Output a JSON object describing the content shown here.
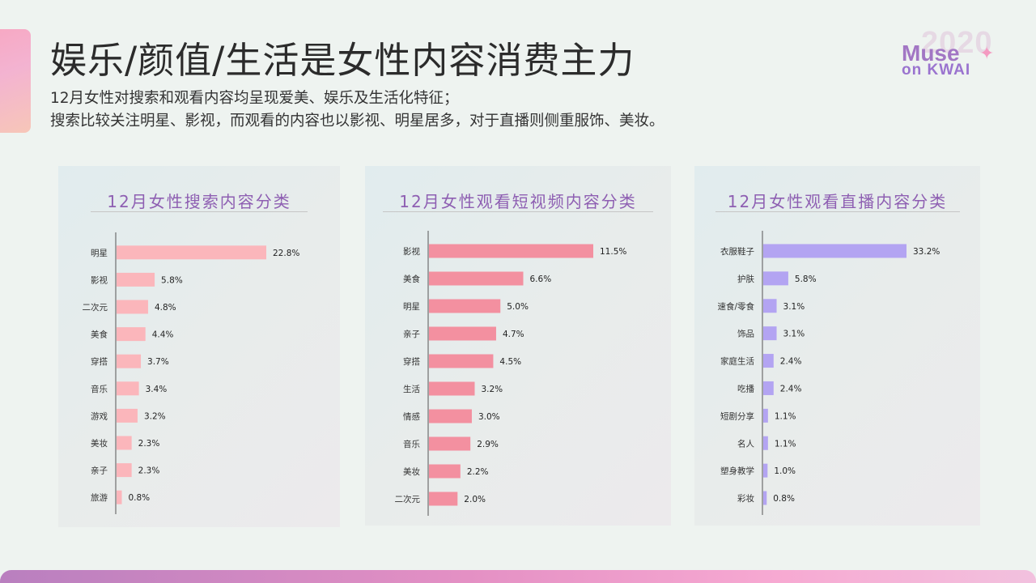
{
  "title": "娱乐/颜值/生活是女性内容消费主力",
  "subtitle_line1": "12月女性对搜索和观看内容均呈现爱美、娱乐及生活化特征；",
  "subtitle_line2": "搜索比较关注明星、影视，而观看的内容也以影视、明星居多，对于直播则侧重服饰、美妆。",
  "logo": {
    "year": "2020",
    "line1": "Muse",
    "line2": "on KWAI"
  },
  "colors": {
    "search": "#fbb6bb",
    "video": "#f390a0",
    "live": "#b3a4f2",
    "title_text": "#8e5fb2"
  },
  "chart_data": [
    {
      "type": "bar",
      "orientation": "horizontal",
      "title": "12月女性搜索内容分类",
      "categories": [
        "明星",
        "影视",
        "二次元",
        "美食",
        "穿搭",
        "音乐",
        "游戏",
        "美妆",
        "亲子",
        "旅游"
      ],
      "values": [
        22.8,
        5.8,
        4.8,
        4.4,
        3.7,
        3.4,
        3.2,
        2.3,
        2.3,
        0.8
      ],
      "labels": [
        "22.8%",
        "5.8%",
        "4.8%",
        "4.4%",
        "3.7%",
        "3.4%",
        "3.2%",
        "2.3%",
        "2.3%",
        "0.8%"
      ],
      "unit": "%"
    },
    {
      "type": "bar",
      "orientation": "horizontal",
      "title": "12月女性观看短视频内容分类",
      "categories": [
        "影视",
        "美食",
        "明星",
        "亲子",
        "穿搭",
        "生活",
        "情感",
        "音乐",
        "美妆",
        "二次元"
      ],
      "values": [
        11.5,
        6.6,
        5.0,
        4.7,
        4.5,
        3.2,
        3.0,
        2.9,
        2.2,
        2.0
      ],
      "labels": [
        "11.5%",
        "6.6%",
        "5.0%",
        "4.7%",
        "4.5%",
        "3.2%",
        "3.0%",
        "2.9%",
        "2.2%",
        "2.0%"
      ],
      "unit": "%"
    },
    {
      "type": "bar",
      "orientation": "horizontal",
      "title": "12月女性观看直播内容分类",
      "categories": [
        "衣服鞋子",
        "护肤",
        "速食/零食",
        "饰品",
        "家庭生活",
        "吃播",
        "短剧分享",
        "名人",
        "塑身教学",
        "彩妆"
      ],
      "values": [
        33.2,
        5.8,
        3.1,
        3.1,
        2.4,
        2.4,
        1.1,
        1.1,
        1.0,
        0.8
      ],
      "labels": [
        "33.2%",
        "5.8%",
        "3.1%",
        "3.1%",
        "2.4%",
        "2.4%",
        "1.1%",
        "1.1%",
        "1.0%",
        "0.8%"
      ],
      "unit": "%"
    }
  ]
}
